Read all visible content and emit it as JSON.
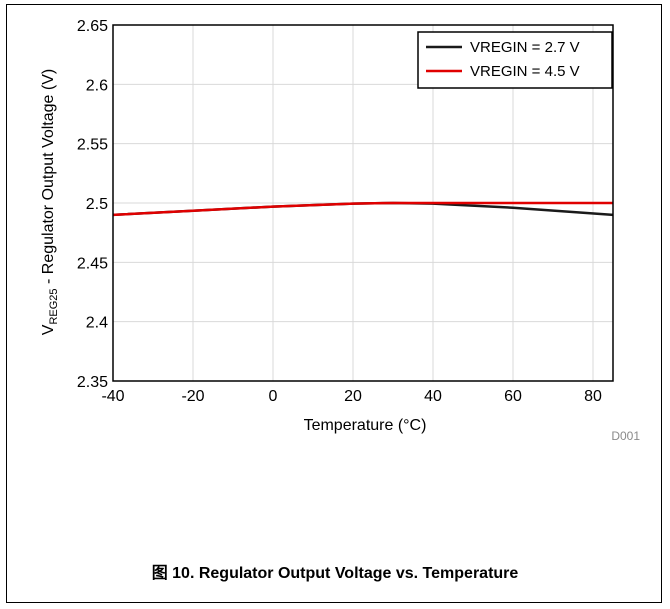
{
  "figure_code": "D001",
  "caption": "图 10. Regulator Output Voltage vs. Temperature",
  "colors": {
    "series_black": "#1a1a1a",
    "series_red": "#e00000",
    "grid": "#d9d9d9"
  },
  "chart_data": {
    "type": "line",
    "xlabel": "Temperature (°C)",
    "ylabel_main": "V",
    "ylabel_sub": "REG25",
    "ylabel_rest": " - Regulator Output Voltage (V)",
    "xlim": [
      -40,
      85
    ],
    "ylim": [
      2.35,
      2.65
    ],
    "x_ticks": [
      -40,
      -20,
      0,
      20,
      40,
      60,
      80
    ],
    "x_tick_labels": [
      "-40",
      "-20",
      "0",
      "20",
      "40",
      "60",
      "80"
    ],
    "y_ticks": [
      2.35,
      2.4,
      2.45,
      2.5,
      2.55,
      2.6,
      2.65
    ],
    "y_tick_labels": [
      "2.35",
      "2.4",
      "2.45",
      "2.5",
      "2.55",
      "2.6",
      "2.65"
    ],
    "grid": true,
    "legend_position": "top-right",
    "series": [
      {
        "name": "VREGIN = 2.7 V",
        "color": "#1a1a1a",
        "x": [
          -40,
          -20,
          0,
          20,
          30,
          40,
          60,
          85
        ],
        "y": [
          2.49,
          2.4935,
          2.497,
          2.4995,
          2.5,
          2.4995,
          2.496,
          2.49
        ]
      },
      {
        "name": "VREGIN = 4.5 V",
        "color": "#e00000",
        "x": [
          -40,
          -20,
          0,
          20,
          30,
          40,
          60,
          85
        ],
        "y": [
          2.49,
          2.4935,
          2.497,
          2.4995,
          2.5,
          2.5,
          2.5,
          2.5
        ]
      }
    ]
  }
}
